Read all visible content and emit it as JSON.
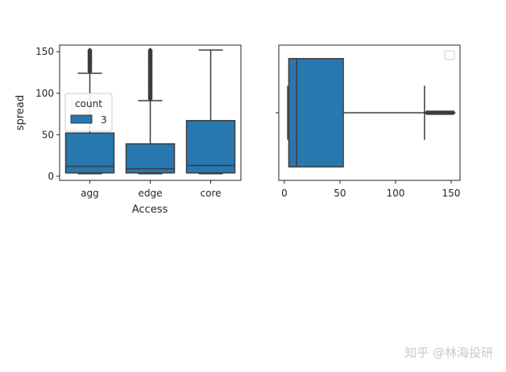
{
  "chart_data": [
    {
      "type": "box",
      "orientation": "vertical",
      "xlabel": "Access",
      "ylabel": "spread",
      "categories": [
        "agg",
        "edge",
        "core"
      ],
      "ylim": [
        -5,
        158
      ],
      "yticks": [
        0,
        50,
        100,
        150
      ],
      "color": "#2878b0",
      "legend": {
        "title": "count",
        "entries": [
          {
            "label": "3",
            "color": "#2878b0"
          }
        ],
        "placement": "center-left"
      },
      "boxes": [
        {
          "category": "agg",
          "whislo": 3,
          "q1": 4,
          "median": 12,
          "q3": 52,
          "whishi": 124,
          "fliers_range": [
            126,
            152
          ]
        },
        {
          "category": "edge",
          "whislo": 3,
          "q1": 4,
          "median": 9,
          "q3": 39,
          "whishi": 91,
          "fliers_range": [
            93,
            152
          ]
        },
        {
          "category": "core",
          "whislo": 3,
          "q1": 4,
          "median": 13,
          "q3": 67,
          "whishi": 152,
          "fliers_range": null
        }
      ]
    },
    {
      "type": "box",
      "orientation": "horizontal",
      "xlim": [
        -5,
        158
      ],
      "xticks": [
        0,
        50,
        100,
        150
      ],
      "color": "#2878b0",
      "legend": {
        "title": "",
        "entries": [],
        "placement": "top-right"
      },
      "boxes": [
        {
          "whislo": 3,
          "q1": 4,
          "median": 11,
          "q3": 53,
          "whishi": 126,
          "fliers_range": [
            128,
            152
          ]
        }
      ]
    }
  ],
  "watermark": "知乎 @林海投研"
}
